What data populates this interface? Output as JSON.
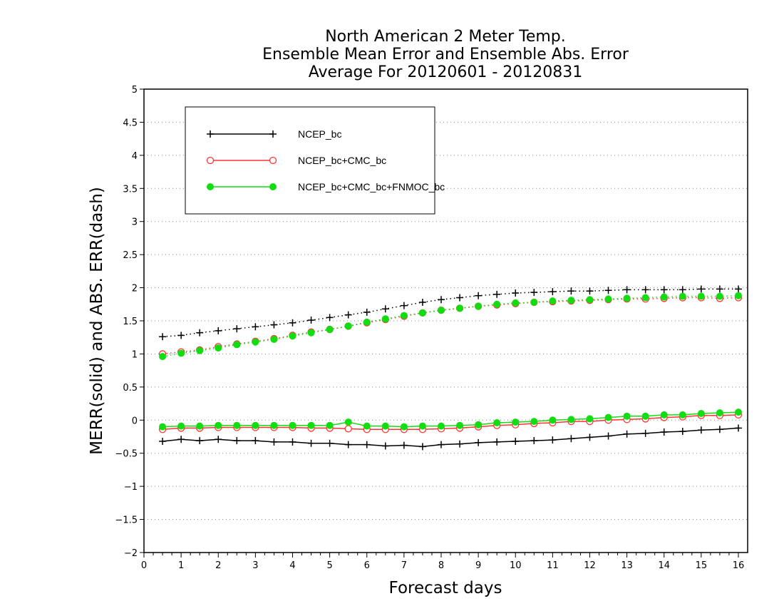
{
  "chart_data": {
    "type": "line",
    "title": [
      "North American 2 Meter Temp.",
      "Ensemble Mean Error and Ensemble Abs. Error",
      "Average For 20120601 - 20120831"
    ],
    "xlabel": "Forecast days",
    "ylabel": "MERR(solid) and ABS. ERR(dash)",
    "xlim": [
      0,
      16.25
    ],
    "ylim": [
      -2,
      5
    ],
    "x_ticks": [
      0,
      1,
      2,
      3,
      4,
      5,
      6,
      7,
      8,
      9,
      10,
      11,
      12,
      13,
      14,
      15,
      16
    ],
    "y_ticks": [
      -2,
      -1.5,
      -1,
      -0.5,
      0,
      0.5,
      1,
      1.5,
      2,
      2.5,
      3,
      3.5,
      4,
      4.5,
      5
    ],
    "x_tick_labels": [
      "0",
      "1",
      "2",
      "3",
      "4",
      "5",
      "6",
      "7",
      "8",
      "9",
      "10",
      "11",
      "12",
      "13",
      "14",
      "15",
      "16"
    ],
    "y_tick_labels": [
      "−2",
      "−1.5",
      "−1",
      "−0.5",
      "0",
      "0.5",
      "1",
      "1.5",
      "2",
      "2.5",
      "3",
      "3.5",
      "4",
      "4.5",
      "5"
    ],
    "grid": "horizontal dotted",
    "legend_position": "top-left",
    "x": [
      0.5,
      1,
      1.5,
      2,
      2.5,
      3,
      3.5,
      4,
      4.5,
      5,
      5.5,
      6,
      6.5,
      7,
      7.5,
      8,
      8.5,
      9,
      9.5,
      10,
      10.5,
      11,
      11.5,
      12,
      12.5,
      13,
      13.5,
      14,
      14.5,
      15,
      15.5,
      16
    ],
    "series": [
      {
        "name": "NCEP_bc",
        "color": "#000000",
        "marker": "plus",
        "merr": [
          -0.32,
          -0.29,
          -0.31,
          -0.29,
          -0.31,
          -0.31,
          -0.33,
          -0.33,
          -0.35,
          -0.35,
          -0.37,
          -0.37,
          -0.39,
          -0.38,
          -0.4,
          -0.37,
          -0.36,
          -0.34,
          -0.33,
          -0.32,
          -0.31,
          -0.3,
          -0.28,
          -0.26,
          -0.24,
          -0.21,
          -0.2,
          -0.18,
          -0.17,
          -0.15,
          -0.14,
          -0.12
        ],
        "abs_err": [
          1.26,
          1.28,
          1.32,
          1.35,
          1.38,
          1.41,
          1.44,
          1.47,
          1.51,
          1.55,
          1.59,
          1.63,
          1.68,
          1.73,
          1.78,
          1.82,
          1.85,
          1.88,
          1.9,
          1.92,
          1.93,
          1.94,
          1.95,
          1.95,
          1.96,
          1.97,
          1.97,
          1.97,
          1.97,
          1.98,
          1.98,
          1.98
        ]
      },
      {
        "name": "NCEP_bc+CMC_bc",
        "color": "#ff3333",
        "marker": "open-circle",
        "merr": [
          -0.14,
          -0.12,
          -0.12,
          -0.11,
          -0.11,
          -0.11,
          -0.11,
          -0.11,
          -0.12,
          -0.12,
          -0.13,
          -0.14,
          -0.14,
          -0.14,
          -0.14,
          -0.13,
          -0.12,
          -0.1,
          -0.08,
          -0.07,
          -0.05,
          -0.04,
          -0.02,
          -0.02,
          0.0,
          0.01,
          0.02,
          0.04,
          0.05,
          0.07,
          0.07,
          0.08
        ],
        "abs_err": [
          1.0,
          1.03,
          1.06,
          1.11,
          1.15,
          1.19,
          1.23,
          1.28,
          1.33,
          1.37,
          1.42,
          1.47,
          1.52,
          1.57,
          1.62,
          1.66,
          1.69,
          1.72,
          1.74,
          1.76,
          1.78,
          1.79,
          1.8,
          1.81,
          1.82,
          1.83,
          1.83,
          1.84,
          1.85,
          1.85,
          1.84,
          1.85
        ]
      },
      {
        "name": "NCEP_bc+CMC_bc+FNMOC_bc",
        "color": "#11dd11",
        "marker": "filled-circle",
        "merr": [
          -0.1,
          -0.09,
          -0.09,
          -0.08,
          -0.08,
          -0.08,
          -0.08,
          -0.08,
          -0.08,
          -0.08,
          -0.03,
          -0.09,
          -0.09,
          -0.1,
          -0.09,
          -0.09,
          -0.08,
          -0.07,
          -0.04,
          -0.03,
          -0.02,
          0.0,
          0.01,
          0.02,
          0.04,
          0.06,
          0.06,
          0.08,
          0.08,
          0.1,
          0.11,
          0.12
        ],
        "abs_err": [
          0.96,
          1.01,
          1.05,
          1.09,
          1.14,
          1.18,
          1.22,
          1.27,
          1.32,
          1.37,
          1.42,
          1.48,
          1.53,
          1.58,
          1.62,
          1.66,
          1.69,
          1.72,
          1.75,
          1.77,
          1.78,
          1.8,
          1.81,
          1.82,
          1.83,
          1.84,
          1.85,
          1.86,
          1.87,
          1.87,
          1.87,
          1.88
        ]
      }
    ]
  }
}
